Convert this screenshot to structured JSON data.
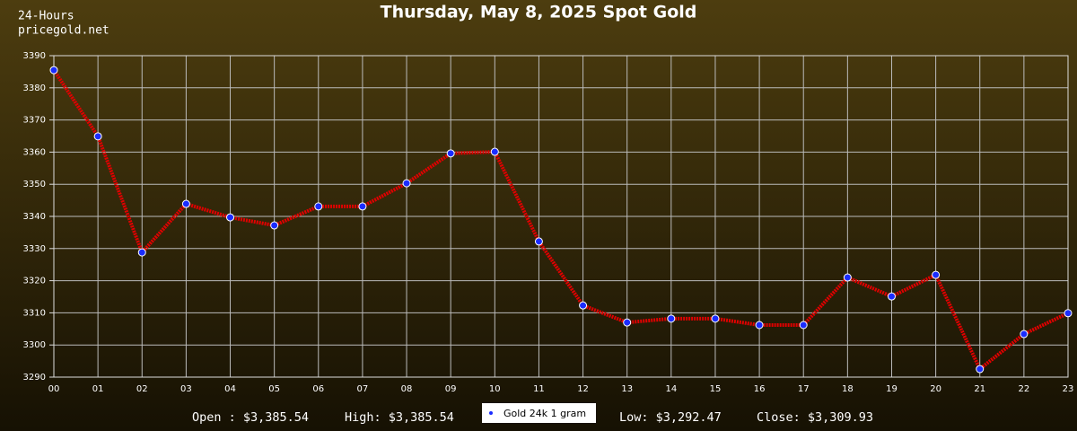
{
  "chart_data": {
    "type": "line",
    "title": "Thursday, May 8, 2025 Spot Gold",
    "corner_lines": [
      "24-Hours",
      "pricegold.net"
    ],
    "categories": [
      "00",
      "01",
      "02",
      "03",
      "04",
      "05",
      "06",
      "07",
      "08",
      "09",
      "10",
      "11",
      "12",
      "13",
      "14",
      "15",
      "16",
      "17",
      "18",
      "19",
      "20",
      "21",
      "22",
      "23"
    ],
    "series": [
      {
        "name": "Gold 24k 1 gram",
        "color": "#e00000",
        "marker_color": "#1a2cff",
        "values": [
          3385.5,
          3364.9,
          3328.8,
          3343.9,
          3339.7,
          3337.2,
          3343.1,
          3343.1,
          3350.3,
          3359.6,
          3360.1,
          3332.2,
          3312.3,
          3307.0,
          3308.2,
          3308.2,
          3306.2,
          3306.2,
          3321.0,
          3315.1,
          3321.8,
          3292.5,
          3303.4,
          3309.9
        ]
      }
    ],
    "ylim": [
      3290,
      3390
    ],
    "yticks": [
      3290,
      3300,
      3310,
      3320,
      3330,
      3340,
      3350,
      3360,
      3370,
      3380,
      3390
    ],
    "grid": true,
    "stats": [
      "Open : $3,385.54",
      "High: $3,385.54",
      "Low: $3,292.47",
      "Close: $3,309.93"
    ]
  }
}
